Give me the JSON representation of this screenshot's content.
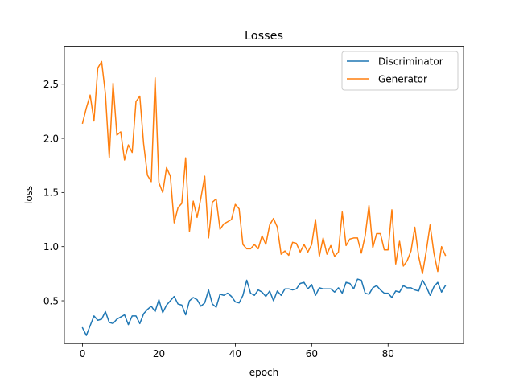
{
  "chart_data": {
    "type": "line",
    "title": "Losses",
    "xlabel": "epoch",
    "ylabel": "loss",
    "xlim": [
      -4.75,
      99.75
    ],
    "ylim": [
      0.105,
      2.85
    ],
    "x_ticks": [
      0,
      20,
      40,
      60,
      80
    ],
    "y_ticks": [
      0.5,
      1.0,
      1.5,
      2.0,
      2.5
    ],
    "y_tick_labels": [
      "0.5",
      "1.0",
      "1.5",
      "2.0",
      "2.5"
    ],
    "grid": false,
    "legend_position": "top-right",
    "series": [
      {
        "name": "Discriminator",
        "color": "#1f77b4",
        "values": [
          0.25,
          0.18,
          0.27,
          0.36,
          0.32,
          0.33,
          0.4,
          0.3,
          0.29,
          0.33,
          0.35,
          0.37,
          0.28,
          0.36,
          0.36,
          0.29,
          0.38,
          0.42,
          0.45,
          0.4,
          0.51,
          0.39,
          0.46,
          0.5,
          0.54,
          0.47,
          0.46,
          0.37,
          0.5,
          0.53,
          0.51,
          0.45,
          0.48,
          0.6,
          0.47,
          0.44,
          0.56,
          0.55,
          0.57,
          0.54,
          0.49,
          0.48,
          0.55,
          0.69,
          0.57,
          0.55,
          0.6,
          0.58,
          0.54,
          0.59,
          0.5,
          0.59,
          0.55,
          0.61,
          0.61,
          0.6,
          0.61,
          0.66,
          0.67,
          0.61,
          0.65,
          0.55,
          0.62,
          0.61,
          0.61,
          0.61,
          0.58,
          0.62,
          0.57,
          0.67,
          0.66,
          0.61,
          0.7,
          0.69,
          0.57,
          0.56,
          0.62,
          0.64,
          0.6,
          0.57,
          0.57,
          0.53,
          0.59,
          0.58,
          0.64,
          0.62,
          0.62,
          0.6,
          0.59,
          0.69,
          0.63,
          0.55,
          0.63,
          0.67,
          0.58,
          0.64
        ]
      },
      {
        "name": "Generator",
        "color": "#ff7f0e",
        "values": [
          2.14,
          2.28,
          2.4,
          2.16,
          2.65,
          2.71,
          2.41,
          1.82,
          2.51,
          2.03,
          2.06,
          1.8,
          1.94,
          1.87,
          2.34,
          2.39,
          1.95,
          1.66,
          1.6,
          2.56,
          1.59,
          1.5,
          1.73,
          1.65,
          1.22,
          1.36,
          1.4,
          1.82,
          1.14,
          1.42,
          1.27,
          1.45,
          1.65,
          1.08,
          1.41,
          1.44,
          1.16,
          1.21,
          1.23,
          1.25,
          1.39,
          1.35,
          1.02,
          0.98,
          0.98,
          1.02,
          0.98,
          1.1,
          1.02,
          1.2,
          1.26,
          1.18,
          0.93,
          0.96,
          0.92,
          1.04,
          1.03,
          0.95,
          1.02,
          0.95,
          1.02,
          1.25,
          0.91,
          1.08,
          0.93,
          1.01,
          0.91,
          0.95,
          1.32,
          1.01,
          1.07,
          1.08,
          1.08,
          0.94,
          1.1,
          1.38,
          0.99,
          1.12,
          1.12,
          0.97,
          0.97,
          1.34,
          0.84,
          1.05,
          0.82,
          0.87,
          0.96,
          1.18,
          0.91,
          0.75,
          0.96,
          1.2,
          0.94,
          0.77,
          1.0,
          0.92
        ]
      }
    ]
  }
}
